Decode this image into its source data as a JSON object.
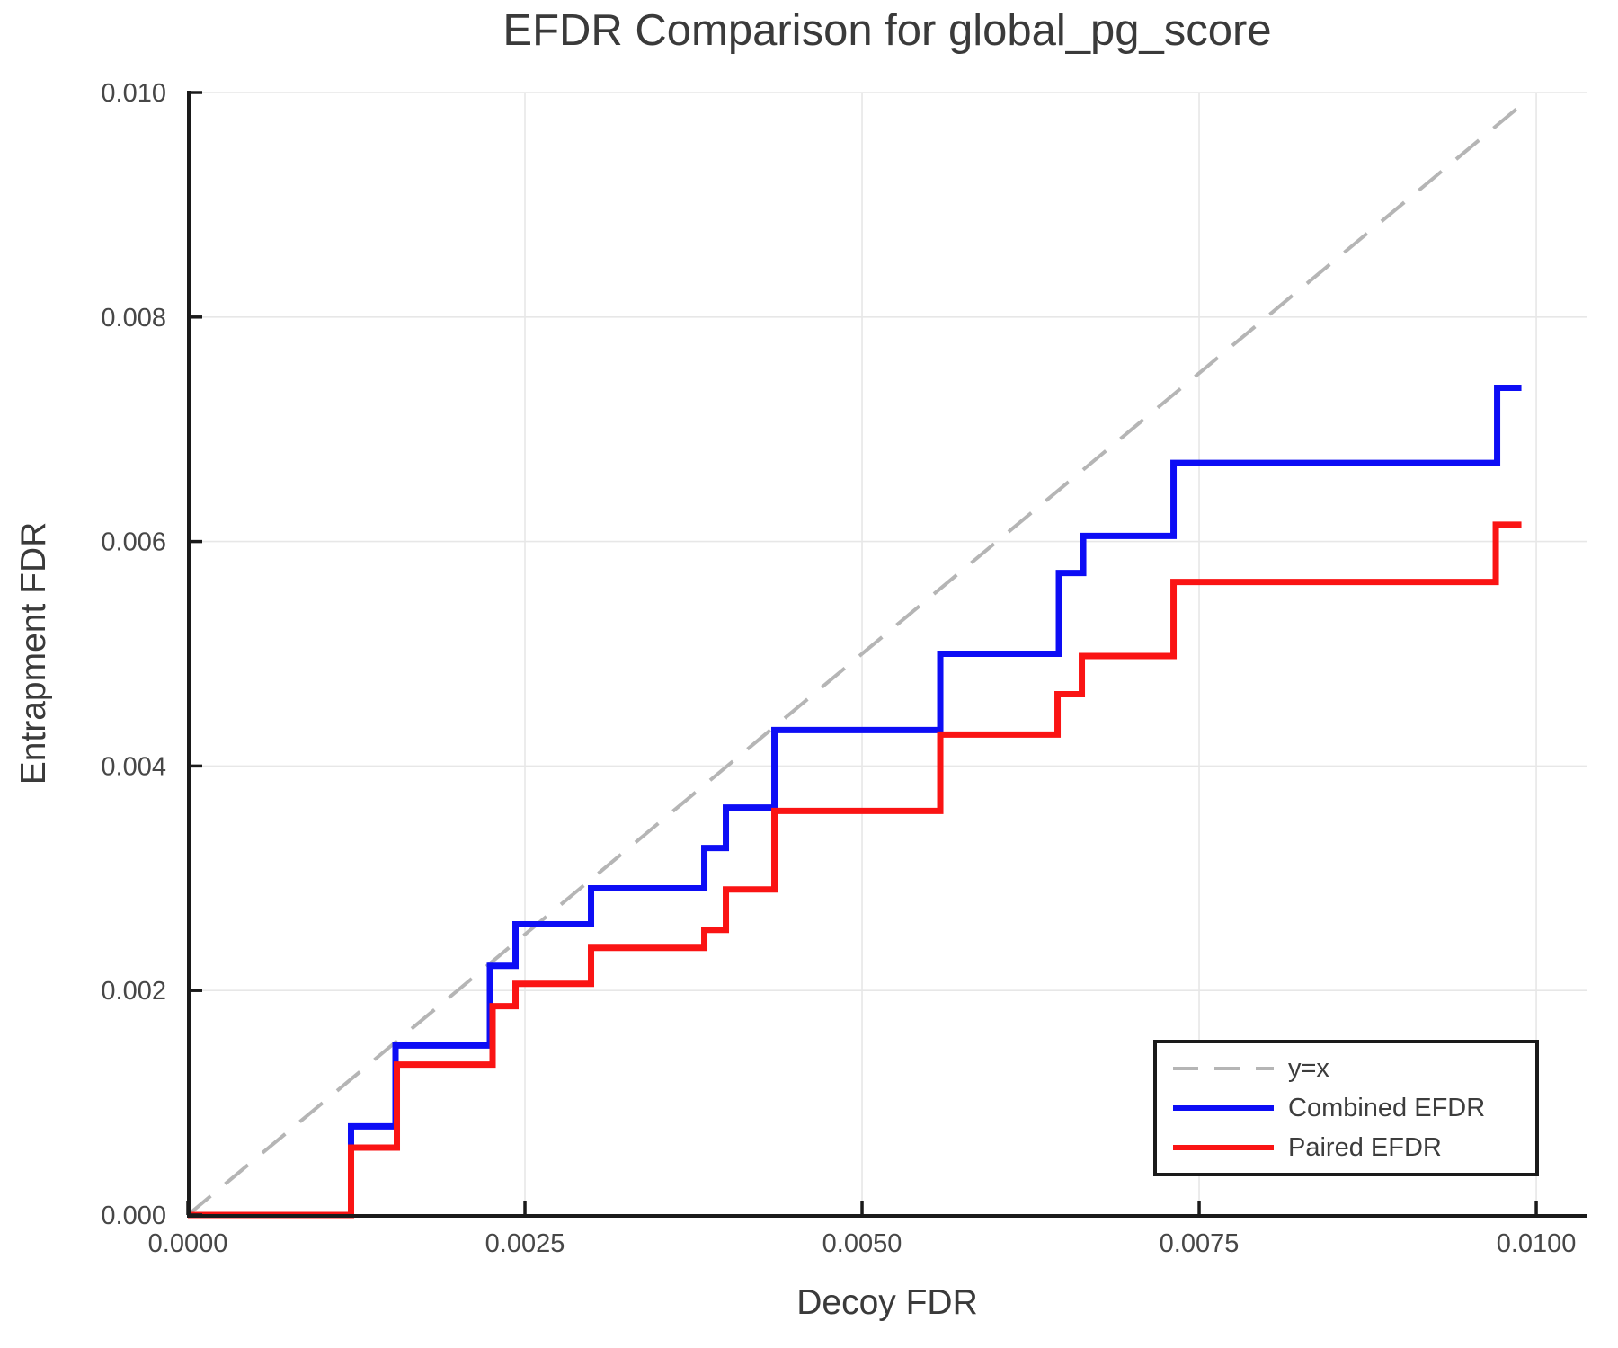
{
  "figure": {
    "background": "#ffffff"
  },
  "chart_data": {
    "type": "line",
    "title": "EFDR Comparison for global_pg_score",
    "xlabel": "Decoy FDR",
    "ylabel": "Entrapment FDR",
    "xlim": [
      0,
      0.010373
    ],
    "ylim": [
      0,
      0.01
    ],
    "grid": true,
    "grid_color": "#e7e7e7",
    "axis_color": "#1a1a1a",
    "text_color": "#474747",
    "x_ticks": {
      "values": [
        0,
        0.0025,
        0.005,
        0.0075,
        0.01
      ],
      "labels": [
        "0.0000",
        "0.0025",
        "0.0050",
        "0.0075",
        "0.0100"
      ]
    },
    "y_ticks": {
      "values": [
        0,
        0.002,
        0.004,
        0.006,
        0.008,
        0.01
      ],
      "labels": [
        "0.000",
        "0.002",
        "0.004",
        "0.006",
        "0.008",
        "0.010"
      ]
    },
    "reference_line": {
      "label": "y=x",
      "style": "dashed",
      "color": "#b5b5b5",
      "x": [
        0,
        0.0099
      ],
      "y": [
        0,
        0.0099
      ]
    },
    "series": [
      {
        "name": "Combined EFDR",
        "color": "#0d0df5",
        "step": true,
        "points": [
          [
            0,
            0
          ],
          [
            0.00121,
            0.00079
          ],
          [
            0.00154,
            0.00151
          ],
          [
            0.00224,
            0.00222
          ],
          [
            0.00243,
            0.00259
          ],
          [
            0.00299,
            0.00291
          ],
          [
            0.00383,
            0.00327
          ],
          [
            0.00399,
            0.00363
          ],
          [
            0.00435,
            0.00432
          ],
          [
            0.00558,
            0.005
          ],
          [
            0.00646,
            0.00572
          ],
          [
            0.00664,
            0.00605
          ],
          [
            0.00731,
            0.0067
          ],
          [
            0.00971,
            0.00737
          ],
          [
            0.00989,
            0.00737
          ]
        ]
      },
      {
        "name": "Paired EFDR",
        "color": "#fa1414",
        "step": true,
        "points": [
          [
            0,
            0
          ],
          [
            0.00121,
            0.0006
          ],
          [
            0.00155,
            0.00134
          ],
          [
            0.00226,
            0.00186
          ],
          [
            0.00243,
            0.00206
          ],
          [
            0.00299,
            0.00238
          ],
          [
            0.00383,
            0.00254
          ],
          [
            0.00399,
            0.0029
          ],
          [
            0.00435,
            0.0036
          ],
          [
            0.00558,
            0.00428
          ],
          [
            0.00645,
            0.00464
          ],
          [
            0.00663,
            0.00498
          ],
          [
            0.00731,
            0.00564
          ],
          [
            0.0097,
            0.00615
          ],
          [
            0.00989,
            0.00615
          ]
        ]
      }
    ],
    "legend": {
      "position": "lower right",
      "entries": [
        {
          "label": "y=x",
          "color": "#b5b5b5",
          "dashed": true
        },
        {
          "label": "Combined EFDR",
          "color": "#0d0df5",
          "dashed": false
        },
        {
          "label": "Paired EFDR",
          "color": "#fa1414",
          "dashed": false
        }
      ]
    }
  }
}
